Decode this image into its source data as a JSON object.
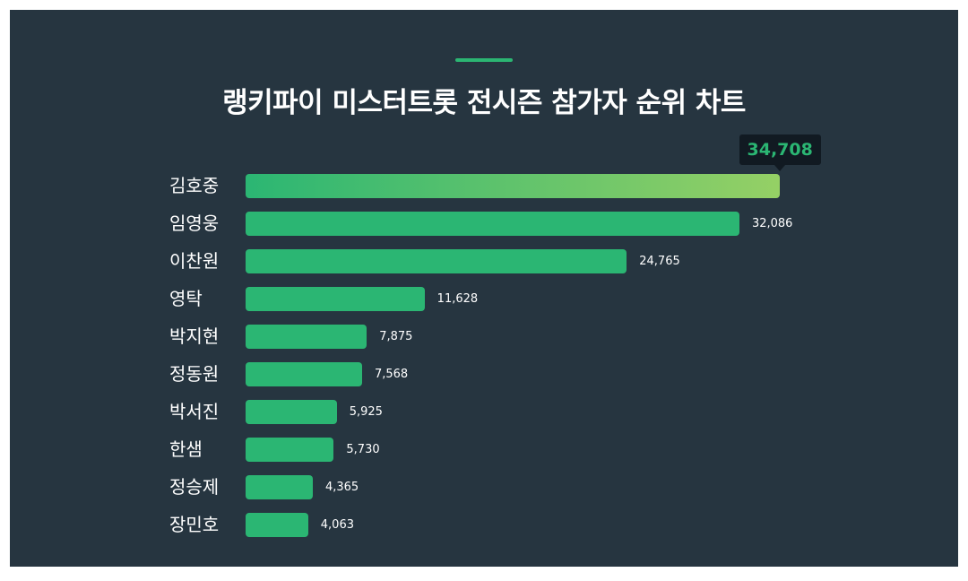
{
  "chart_data": {
    "type": "bar",
    "orientation": "horizontal",
    "title": "랭키파이 미스터트롯 전시즌 참가자 순위 차트",
    "categories": [
      "김호중",
      "임영웅",
      "이찬원",
      "영탁",
      "박지현",
      "정동원",
      "박서진",
      "한샘",
      "정승제",
      "장민호"
    ],
    "values": [
      34708,
      32086,
      24765,
      11628,
      7875,
      7568,
      5925,
      5730,
      4365,
      4063
    ],
    "value_labels": [
      "34,708",
      "32,086",
      "24,765",
      "11,628",
      "7,875",
      "7,568",
      "5,925",
      "5,730",
      "4,365",
      "4,063"
    ],
    "highlight_index": 0,
    "xlabel": "",
    "ylabel": "",
    "xlim": [
      0,
      34708
    ],
    "grid": false,
    "colors": {
      "bar": "#2bb673",
      "highlight_start": "#2bb673",
      "highlight_end": "#95d065",
      "background": "#263540",
      "tooltip_bg": "#111a22"
    }
  }
}
